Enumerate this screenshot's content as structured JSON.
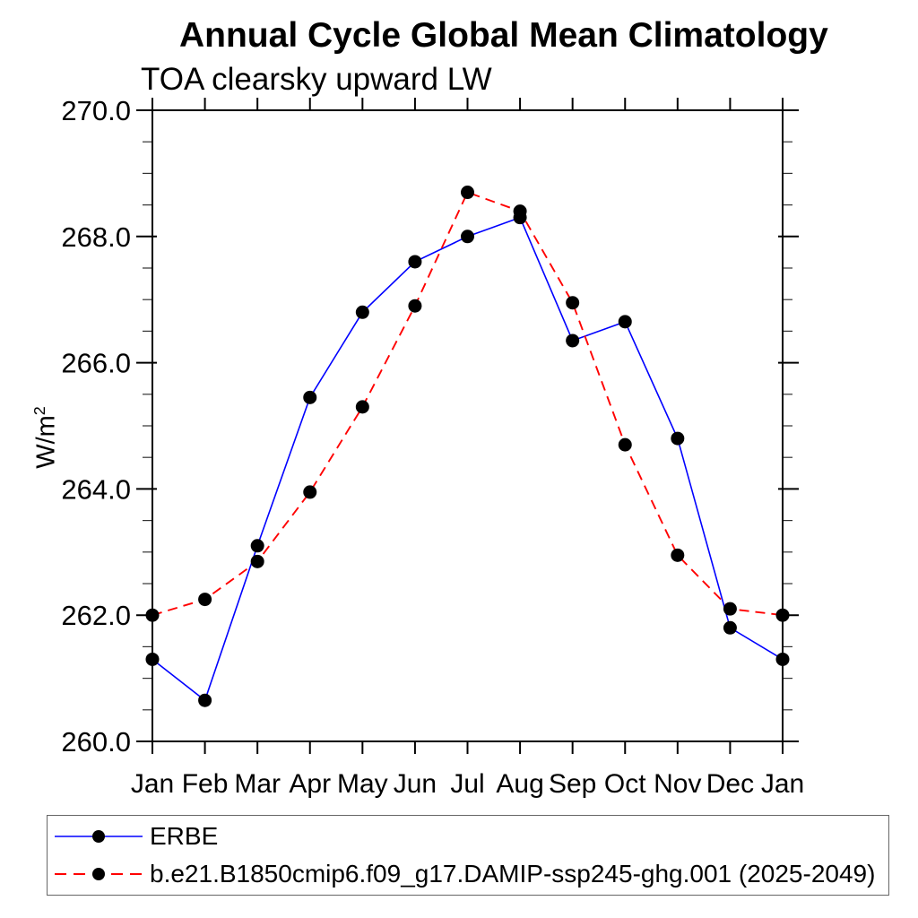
{
  "page": {
    "title": "Annual Cycle Global Mean Climatology",
    "subtitle": "TOA clearsky upward LW",
    "y_axis_label_base": "W/m",
    "y_axis_label_sup": "2"
  },
  "chart_data": {
    "type": "line",
    "title": "Annual Cycle Global Mean Climatology",
    "subtitle": "TOA clearsky upward LW",
    "xlabel": "",
    "ylabel": "W/m2",
    "categories": [
      "Jan",
      "Feb",
      "Mar",
      "Apr",
      "May",
      "Jun",
      "Jul",
      "Aug",
      "Sep",
      "Oct",
      "Nov",
      "Dec",
      "Jan"
    ],
    "ylim": [
      260.0,
      270.0
    ],
    "ytick_values": [
      260.0,
      262.0,
      264.0,
      266.0,
      268.0,
      270.0
    ],
    "ytick_labels": [
      "260.0",
      "262.0",
      "264.0",
      "266.0",
      "268.0",
      "270.0"
    ],
    "yminor_step": 0.5,
    "grid": false,
    "legend_position": "bottom-left-box",
    "marker": "filled-circle",
    "marker_color": "#000000",
    "series": [
      {
        "name": "ERBE",
        "color": "#0000ff",
        "line_style": "solid",
        "values": [
          261.3,
          260.65,
          263.1,
          265.45,
          266.8,
          267.6,
          268.0,
          268.3,
          266.35,
          266.65,
          264.8,
          261.8,
          261.3
        ]
      },
      {
        "name": "b.e21.B1850cmip6.f09_g17.DAMIP-ssp245-ghg.001 (2025-2049)",
        "color": "#ff0000",
        "line_style": "dashed",
        "values": [
          262.0,
          262.25,
          262.85,
          263.95,
          265.3,
          266.9,
          268.7,
          268.4,
          266.95,
          264.7,
          262.95,
          262.1,
          262.0
        ]
      }
    ]
  }
}
